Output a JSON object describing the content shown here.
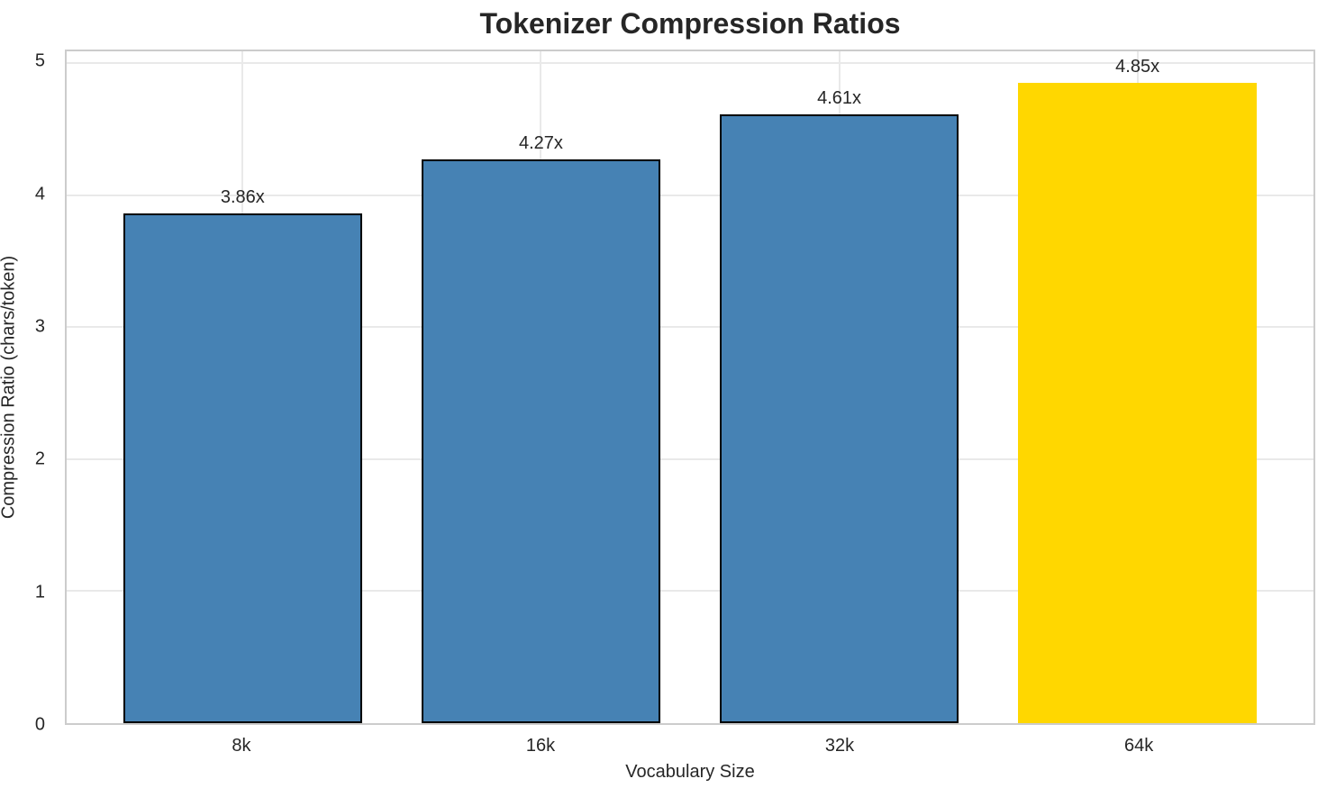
{
  "chart_data": {
    "type": "bar",
    "title": "Tokenizer Compression Ratios",
    "xlabel": "Vocabulary Size",
    "ylabel": "Compression Ratio (chars/token)",
    "categories": [
      "8k",
      "16k",
      "32k",
      "64k"
    ],
    "values": [
      3.86,
      4.27,
      4.61,
      4.85
    ],
    "bar_labels": [
      "3.86x",
      "4.27x",
      "4.61x",
      "4.85x"
    ],
    "yticks": [
      0,
      1,
      2,
      3,
      4,
      5
    ],
    "ylim": [
      0,
      5.09
    ],
    "bar_width_data_units": 0.8,
    "grid": true,
    "legend": "none",
    "bar_colors": [
      "#4682B4",
      "#4682B4",
      "#4682B4",
      "#FFD700"
    ],
    "bar_edge_colors": [
      "#000000",
      "#000000",
      "#000000",
      "none"
    ],
    "colors": {
      "grid": "#e9e9e9",
      "spine": "#cccccc",
      "text": "#262626",
      "background": "#ffffff",
      "highlight": "#FFD700",
      "default_bar": "#4682B4"
    }
  }
}
